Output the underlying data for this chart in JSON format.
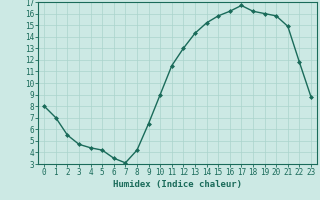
{
  "x": [
    0,
    1,
    2,
    3,
    4,
    5,
    6,
    7,
    8,
    9,
    10,
    11,
    12,
    13,
    14,
    15,
    16,
    17,
    18,
    19,
    20,
    21,
    22,
    23
  ],
  "y": [
    8.0,
    7.0,
    5.5,
    4.7,
    4.4,
    4.2,
    3.5,
    3.1,
    4.2,
    6.5,
    9.0,
    11.5,
    13.0,
    14.3,
    15.2,
    15.8,
    16.2,
    16.7,
    16.2,
    16.0,
    15.8,
    14.9,
    11.8,
    8.8
  ],
  "line_color": "#1a6b5a",
  "marker": "D",
  "marker_size": 2.0,
  "bg_color": "#cce9e4",
  "grid_color": "#aad4cc",
  "axes_color": "#1a6b5a",
  "xlabel": "Humidex (Indice chaleur)",
  "xlim": [
    -0.5,
    23.5
  ],
  "ylim": [
    3,
    17
  ],
  "yticks": [
    3,
    4,
    5,
    6,
    7,
    8,
    9,
    10,
    11,
    12,
    13,
    14,
    15,
    16,
    17
  ],
  "xticks": [
    0,
    1,
    2,
    3,
    4,
    5,
    6,
    7,
    8,
    9,
    10,
    11,
    12,
    13,
    14,
    15,
    16,
    17,
    18,
    19,
    20,
    21,
    22,
    23
  ],
  "xlabel_fontsize": 6.5,
  "tick_fontsize": 5.5,
  "line_width": 1.0
}
